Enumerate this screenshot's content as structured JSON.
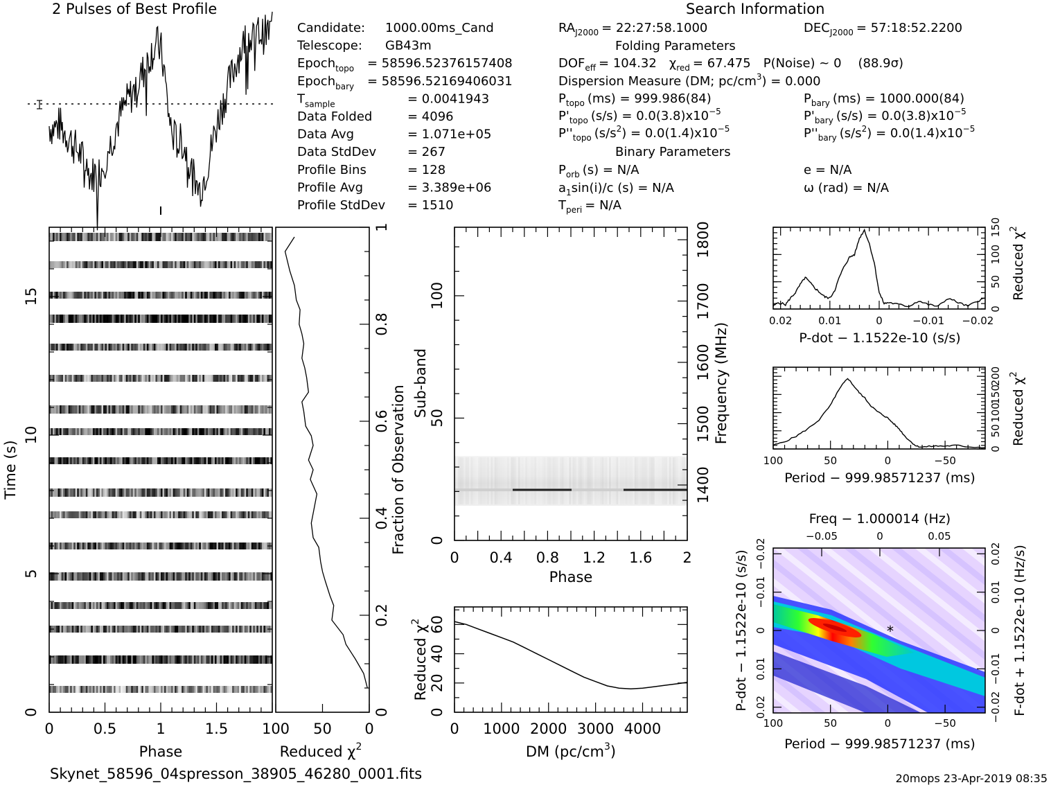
{
  "footer": {
    "filename": "Skynet_58596_04spresson_38905_46280_0001.fits",
    "stamp": "20mops 23-Apr-2019 08:35"
  },
  "profile_title": "2 Pulses of Best Profile",
  "search_info_title": "Search Information",
  "info_col1": [
    {
      "k": "Candidate:",
      "v": "1000.00ms_Cand"
    },
    {
      "k": "Telescope:",
      "v": "GB43m"
    },
    {
      "k": "Epoch",
      "sub": "topo",
      "v": "= 58596.52376157408"
    },
    {
      "k": "Epoch",
      "sub": "bary",
      "v": "= 58596.52169406031"
    },
    {
      "k": "T",
      "sub": "sample",
      "v": "=   0.0041943"
    },
    {
      "k": "Data Folded",
      "v": "=   4096"
    },
    {
      "k": "Data Avg",
      "v": "=   1.071e+05"
    },
    {
      "k": "Data StdDev",
      "v": "=   267"
    },
    {
      "k": "Profile Bins",
      "v": "=   128"
    },
    {
      "k": "Profile Avg",
      "v": "=   3.389e+06"
    },
    {
      "k": "Profile StdDev",
      "v": "=   1510"
    }
  ],
  "info_col2": {
    "ra": "RA",
    "ra_sub": "J2000",
    "ra_val": "= 22:27:58.1000",
    "folding_title": "Folding Parameters",
    "dof": "DOF",
    "dof_sub": "eff",
    "dof_val": "= 104.32",
    "chi": "χ",
    "chi_sub": "red",
    "chi_val": "= 67.475",
    "pnoise": "P(Noise) ~ 0",
    "sigma": "(88.9σ)",
    "dm_line": "Dispersion Measure (DM; pc/cm",
    "dm_val": ") = 0.000",
    "ptopo": "P",
    "ptopo_sub": "topo",
    "ptopo_val": "(ms) =  999.986(84)",
    "pdtopo_val": "(s/s) = 0.0(3.8)x10",
    "pddtopo_val": "(s/s",
    "pddtopo_val2": ") = 0.0(1.4)x10",
    "exp": "−5",
    "binary_title": "Binary Parameters",
    "porb": "P",
    "porb_sub": "orb",
    "porb_val": "(s) = N/A",
    "a1": "a",
    "a1_sub": "1",
    "a1_val": "sin(i)/c (s) = N/A",
    "tperi": "T",
    "tperi_sub": "peri",
    "tperi_val": "= N/A"
  },
  "info_col3": {
    "dec": "DEC",
    "dec_sub": "J2000",
    "dec_val": "= 57:18:52.2200",
    "pbary": "P",
    "pbary_sub": "bary",
    "pbary_val": "(ms) =  1000.000(84)",
    "pdbary_val": "(s/s) = 0.0(3.8)x10",
    "pddbary_val": "(s/s",
    "pddbary_val2": ") = 0.0(1.4)x10",
    "e_val": "e = N/A",
    "w_val": "ω (rad) = N/A"
  },
  "colors": {
    "line": "#000000",
    "heat_hot": "#ff0000",
    "heat_mid": "#00e060",
    "heat_low": "#1030ff",
    "heat_bg": "#e8d8ff"
  },
  "chart_data": [
    {
      "id": "profile",
      "type": "line",
      "title": "2 Pulses of Best Profile",
      "x_range": [
        0,
        2
      ],
      "series": [
        {
          "values": [
            0.35,
            0.3,
            0.32,
            0.38,
            0.25,
            0.15,
            0.05,
            -0.1,
            -0.2,
            -0.3,
            -0.5,
            -0.65,
            -0.8,
            -0.7,
            -0.75,
            -0.6,
            -0.4,
            -0.2,
            0.05,
            0.3,
            0.5,
            0.7,
            0.85,
            1.0,
            1.1,
            1.25,
            1.45,
            1.6,
            1.8,
            2.0,
            2.1,
            2.2,
            2.05,
            1.5,
            0.7,
            0.2,
            0.05,
            -0.05,
            0.0,
            -0.2,
            -0.5,
            -0.8,
            -1.0,
            -1.1,
            -0.9,
            -0.6,
            -0.3,
            0.1,
            0.4,
            0.7,
            0.95,
            1.2,
            1.45,
            1.7,
            1.95,
            2.1,
            2.3,
            2.4,
            2.25,
            2.35,
            2.5,
            2.4,
            2.45,
            2.5
          ]
        }
      ]
    },
    {
      "id": "time_phase",
      "type": "heatmap",
      "xlabel": "Phase",
      "ylabel": "Time (s)",
      "x_ticks": [
        "0",
        "0.5",
        "1",
        "1.5"
      ],
      "y_ticks": [
        "0",
        "5",
        "10",
        "15"
      ],
      "x_range": [
        0,
        2
      ],
      "y_range": [
        0,
        17.5
      ]
    },
    {
      "id": "chi_time",
      "type": "line",
      "xlabel": "Reduced χ",
      "xlabel_sup": "2",
      "ylabel": "Fraction of Observation",
      "x_ticks": [
        "100",
        "50",
        "0"
      ],
      "y_ticks": [
        "0",
        "0.2",
        "0.4",
        "0.6",
        "0.8",
        "1"
      ],
      "x_range": [
        100,
        0
      ],
      "y_range": [
        0,
        1
      ],
      "x": [
        2,
        6,
        15,
        25,
        28,
        40,
        38,
        42,
        47,
        50,
        52,
        54,
        60,
        62,
        60,
        58,
        56,
        63,
        60,
        65,
        60,
        62,
        68,
        70,
        72,
        65,
        67,
        69,
        72,
        70,
        72,
        75,
        74,
        78,
        80,
        85,
        90,
        80
      ],
      "y": [
        0.05,
        0.08,
        0.11,
        0.14,
        0.16,
        0.19,
        0.22,
        0.24,
        0.27,
        0.29,
        0.31,
        0.34,
        0.36,
        0.39,
        0.41,
        0.43,
        0.45,
        0.48,
        0.5,
        0.52,
        0.55,
        0.57,
        0.59,
        0.62,
        0.64,
        0.66,
        0.69,
        0.71,
        0.73,
        0.76,
        0.78,
        0.8,
        0.83,
        0.85,
        0.88,
        0.91,
        0.95,
        0.98
      ]
    },
    {
      "id": "subband",
      "type": "heatmap",
      "xlabel": "Phase",
      "ylabel": "Sub-band",
      "ylabel2": "Frequency (MHz)",
      "x_ticks": [
        "0",
        "0.4",
        "0.8",
        "1.2",
        "1.6",
        "2"
      ],
      "y_ticks": [
        "0",
        "50",
        "100"
      ],
      "y2_ticks": [
        "1400",
        "1500",
        "1600",
        "1700",
        "1800"
      ],
      "x_range": [
        0,
        2
      ],
      "y_range": [
        0,
        128
      ],
      "active_band": [
        14,
        35
      ],
      "bright_subband": 20.5
    },
    {
      "id": "dm",
      "type": "line",
      "xlabel": "DM (pc/cm",
      "xlabel_sup": "3",
      "xlabel_end": ")",
      "ylabel": "Reduced χ",
      "ylabel_sup": "2",
      "x_ticks": [
        "0",
        "1000",
        "2000",
        "3000",
        "4000"
      ],
      "y_ticks": [
        "0",
        "20",
        "40",
        "60"
      ],
      "x_range": [
        0,
        4950
      ],
      "y_range": [
        0,
        72
      ],
      "x": [
        0,
        250,
        500,
        750,
        1000,
        1250,
        1500,
        1750,
        2000,
        2250,
        2500,
        2750,
        3000,
        3250,
        3500,
        3750,
        4000,
        4250,
        4500,
        4750,
        4950
      ],
      "y": [
        62,
        60,
        57,
        54,
        51,
        48,
        44,
        40,
        36,
        32,
        28,
        24,
        21,
        18,
        16.5,
        16,
        16.5,
        17.5,
        18.5,
        19.5,
        20.5
      ]
    },
    {
      "id": "pdot",
      "type": "line",
      "xlabel": "P-dot − 1.1522e-10 (s/s)",
      "ylabel": "Reduced χ",
      "ylabel_sup": "2",
      "x_ticks": [
        "0.02",
        "0.01",
        "0",
        "−0.01",
        "−0.02"
      ],
      "y_ticks": [
        "0",
        "50",
        "100",
        "150"
      ],
      "x_range": [
        0.0215,
        -0.0215
      ],
      "y_range": [
        0,
        150
      ],
      "x": [
        0.0215,
        0.0205,
        0.019,
        0.018,
        0.017,
        0.016,
        0.015,
        0.014,
        0.013,
        0.012,
        0.011,
        0.01,
        0.009,
        0.008,
        0.007,
        0.006,
        0.005,
        0.004,
        0.003,
        0.002,
        0.001,
        0.0,
        -0.001,
        -0.002,
        -0.004,
        -0.006,
        -0.008,
        -0.01,
        -0.012,
        -0.014,
        -0.016,
        -0.018,
        -0.02,
        -0.0215
      ],
      "y": [
        5,
        12,
        8,
        20,
        30,
        45,
        58,
        48,
        38,
        30,
        22,
        20,
        35,
        60,
        80,
        95,
        100,
        130,
        145,
        120,
        85,
        30,
        10,
        12,
        8,
        5,
        15,
        8,
        5,
        20,
        12,
        5,
        15,
        20
      ]
    },
    {
      "id": "period",
      "type": "line",
      "xlabel": "Period − 999.98571237 (ms)",
      "ylabel": "Reduced χ",
      "ylabel_sup": "2",
      "x_ticks": [
        "100",
        "50",
        "0",
        "−50"
      ],
      "y_ticks": [
        "0",
        "50",
        "100",
        "150",
        "200"
      ],
      "x_range": [
        100,
        -85
      ],
      "y_range": [
        0,
        225
      ],
      "x": [
        100,
        90,
        80,
        70,
        60,
        50,
        45,
        40,
        35,
        30,
        25,
        20,
        15,
        10,
        5,
        0,
        -5,
        -10,
        -15,
        -20,
        -25,
        -30,
        -40,
        -50,
        -60,
        -70,
        -85
      ],
      "y": [
        10,
        20,
        35,
        55,
        80,
        120,
        150,
        175,
        195,
        175,
        155,
        140,
        120,
        105,
        95,
        85,
        70,
        55,
        35,
        20,
        8,
        5,
        8,
        8,
        10,
        6,
        4
      ]
    },
    {
      "id": "ppdot",
      "type": "heatmap",
      "xlabel": "Period − 999.98571237 (ms)",
      "ylabel": "P-dot − 1.1522e-10 (s/s)",
      "x2label": "Freq − 1.000014 (Hz)",
      "y2label": "F-dot + 1.1522e-10 (Hz/s)",
      "x_ticks": [
        "100",
        "50",
        "0",
        "−50"
      ],
      "y_ticks": [
        "0.02",
        "0.01",
        "0",
        "−0.01",
        "−0.02"
      ],
      "x2_ticks": [
        "−0.05",
        "0",
        "0.05"
      ],
      "y2_ticks": [
        "−0.02",
        "−0.01",
        "0",
        "0.01",
        "0.02"
      ],
      "x_range": [
        100,
        -85
      ],
      "y_range": [
        0.0215,
        -0.0215
      ],
      "marker": [
        0,
        0
      ]
    }
  ]
}
